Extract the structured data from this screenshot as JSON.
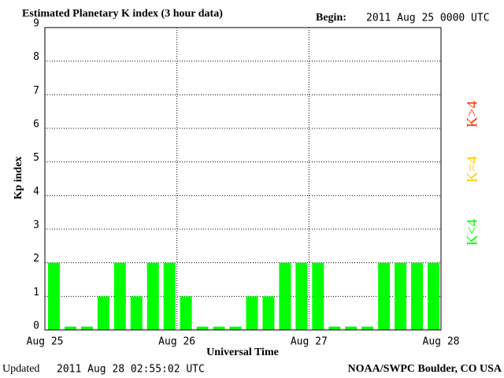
{
  "chart_data": {
    "type": "bar",
    "title": "Estimated Planetary K index (3 hour data)",
    "begin_label": "Begin:",
    "begin": "2011 Aug 25 0000 UTC",
    "y_label": "Kp index",
    "x_label": "Universal Time",
    "updated_label": "Updated",
    "updated": "2011 Aug 28 02:55:02 UTC",
    "source": "NOAA/SWPC Boulder, CO USA",
    "x": [
      0,
      3,
      6,
      9,
      12,
      15,
      18,
      21,
      24,
      27,
      30,
      33,
      36,
      39,
      42,
      45,
      48,
      51,
      54,
      57,
      60,
      63,
      66,
      69
    ],
    "values": [
      2,
      0.1,
      0.1,
      1,
      2,
      1,
      2,
      2,
      1,
      0.1,
      0.1,
      0.1,
      1,
      1,
      2,
      2,
      2,
      0.1,
      0.1,
      0.1,
      2,
      2,
      2,
      2
    ],
    "bar_width": 3,
    "color": "#00ff00",
    "xlim": [
      0,
      72
    ],
    "xticks": [
      {
        "value": 0,
        "label": "Aug 25"
      },
      {
        "value": 24,
        "label": "Aug 26"
      },
      {
        "value": 48,
        "label": "Aug 27"
      },
      {
        "value": 72,
        "label": "Aug 28"
      }
    ],
    "ylim": [
      0,
      9
    ],
    "yticks": [
      0,
      1,
      2,
      3,
      4,
      5,
      6,
      7,
      8,
      9
    ],
    "grid": true,
    "legend": [
      {
        "label": "K<4",
        "color": "#00ff00"
      },
      {
        "label": "K=4",
        "color": "#ffcc00"
      },
      {
        "label": "K>4",
        "color": "#ff3300"
      }
    ]
  }
}
